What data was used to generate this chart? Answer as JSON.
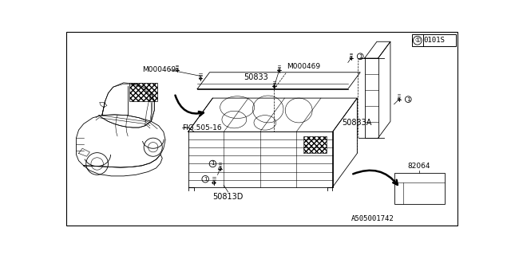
{
  "bg_color": "#ffffff",
  "line_color": "#000000",
  "title_box_text": "0101S",
  "bottom_ref": "A505001742",
  "labels": {
    "M000469_left": "M000469",
    "M000469_right": "M000469",
    "50833": "50833",
    "50833A": "50833A",
    "50813D": "50813D",
    "82064": "82064",
    "FIG505": "FIG.505-16"
  },
  "fig_size": [
    6.4,
    3.2
  ],
  "dpi": 100
}
